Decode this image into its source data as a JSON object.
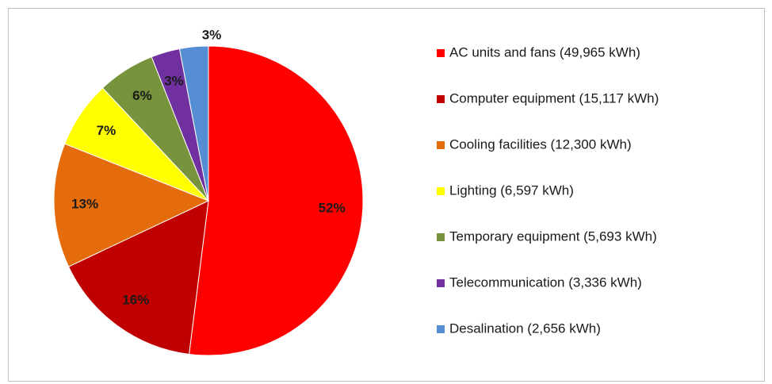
{
  "chart_data": {
    "type": "pie",
    "categories": [
      "AC units and fans (49,965 kWh)",
      "Computer equipment (15,117 kWh)",
      "Cooling facilities (12,300 kWh)",
      "Lighting (6,597 kWh)",
      "Temporary equipment (5,693 kWh)",
      "Telecommunication (3,336 kWh)",
      "Desalination (2,656 kWh)"
    ],
    "values": [
      52,
      16,
      13,
      7,
      6,
      3,
      3
    ],
    "value_labels": [
      "52%",
      "16%",
      "13%",
      "7%",
      "6%",
      "3%",
      "3%"
    ],
    "colors": [
      "#ff0000",
      "#c00000",
      "#e46c0a",
      "#ffff00",
      "#77933c",
      "#7030a0",
      "#558ed5"
    ],
    "legend": "right"
  }
}
